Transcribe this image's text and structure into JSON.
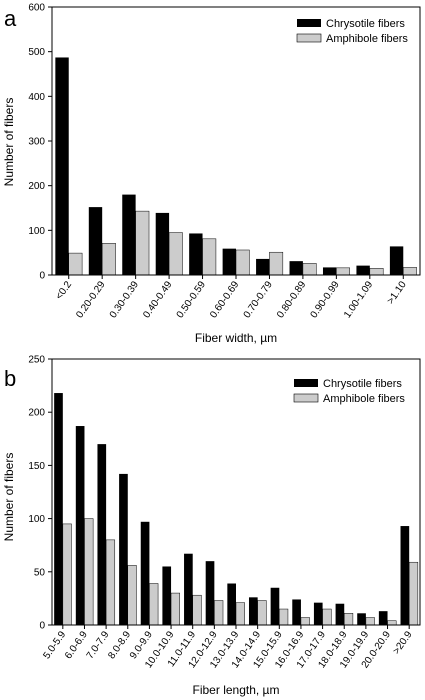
{
  "colors": {
    "chrysotile": "#000000",
    "amphibole": "#cccccc",
    "axis": "#000000"
  },
  "chart_data": [
    {
      "type": "bar",
      "panel_label": "a",
      "categories": [
        "<0.2",
        "0.20-0.29",
        "0.30-0.39",
        "0.40-0.49",
        "0.50-0.59",
        "0.60-0.69",
        "0.70-0.79",
        "0.80-0.89",
        "0.90-0.99",
        "1.00-1.09",
        ">1.10"
      ],
      "series": [
        {
          "name": "Chrysotile fibers",
          "values": [
            487,
            152,
            180,
            139,
            93,
            59,
            36,
            31,
            17,
            21,
            64
          ]
        },
        {
          "name": "Amphibole fibers",
          "values": [
            49,
            71,
            143,
            95,
            81,
            56,
            51,
            26,
            16,
            15,
            17
          ]
        }
      ],
      "xlabel": "Fiber width, µm",
      "ylabel": "Number of fibers",
      "ylim": [
        0,
        600
      ],
      "yticks": [
        0,
        100,
        200,
        300,
        400,
        500,
        600
      ],
      "legend": "top-right",
      "grid": false
    },
    {
      "type": "bar",
      "panel_label": "b",
      "categories": [
        "5.0-5.9",
        "6.0-6.9",
        "7.0-7.9",
        "8.0-8.9",
        "9.0-9.9",
        "10.0-10.9",
        "11.0-11.9",
        "12.0-12.9",
        "13.0-13.9",
        "14.0-14.9",
        "15.0-15.9",
        "16.0-16.9",
        "17.0-17.9",
        "18.0-18.9",
        "19.0-19.9",
        "20.0-20.9",
        ">20.9"
      ],
      "series": [
        {
          "name": "Chrysotile fibers",
          "values": [
            218,
            187,
            170,
            142,
            97,
            55,
            67,
            60,
            39,
            26,
            35,
            24,
            21,
            20,
            11,
            13,
            93
          ]
        },
        {
          "name": "Amphibole fibers",
          "values": [
            95,
            100,
            80,
            56,
            39,
            30,
            28,
            23,
            21,
            23,
            15,
            7,
            15,
            11,
            7,
            4,
            59
          ]
        }
      ],
      "xlabel": "Fiber length, µm",
      "ylabel": "Number of fibers",
      "ylim": [
        0,
        250
      ],
      "yticks": [
        0,
        50,
        100,
        150,
        200,
        250
      ],
      "legend": "top-right",
      "grid": false
    }
  ]
}
